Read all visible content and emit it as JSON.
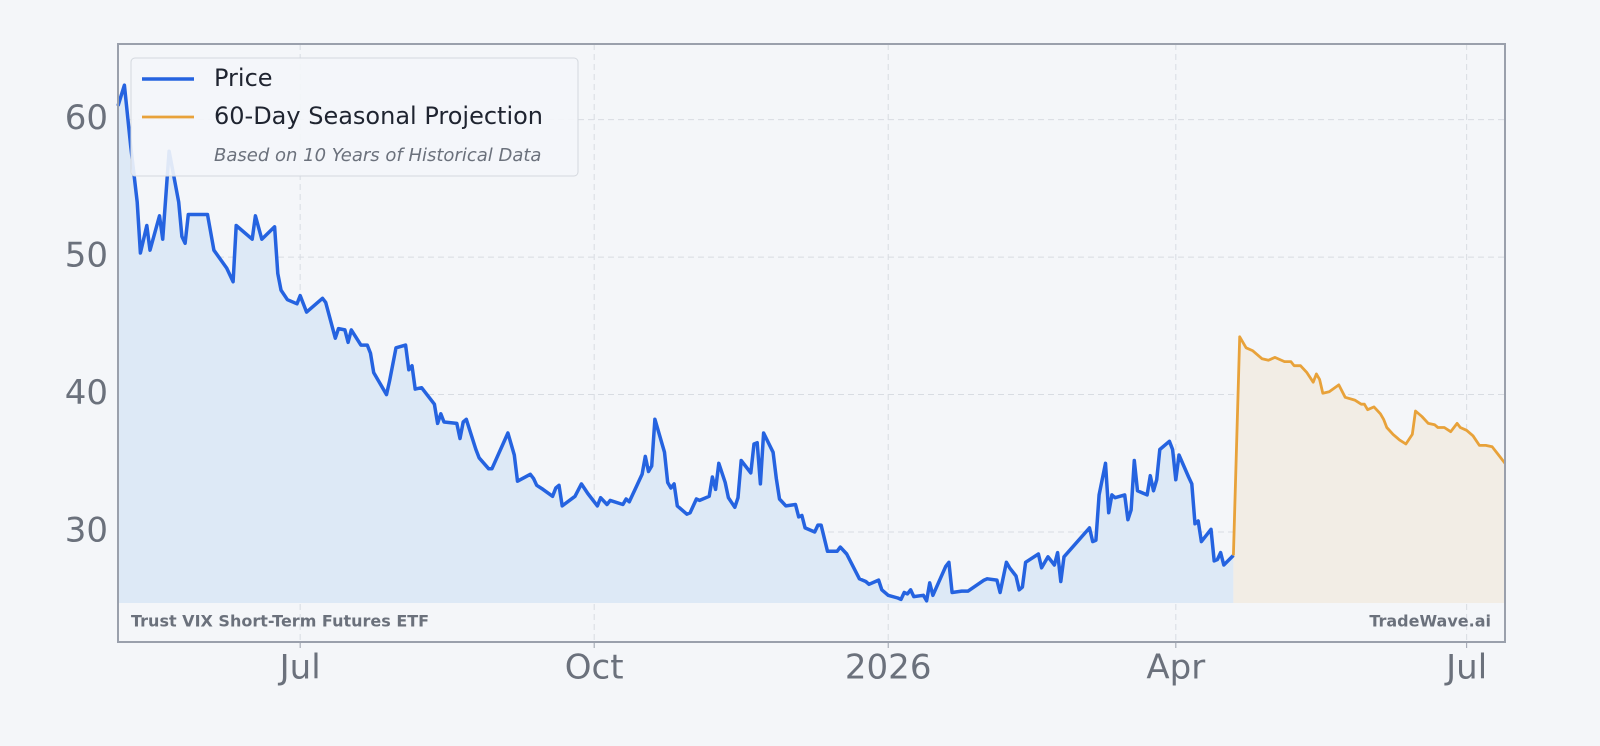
{
  "chart_data": {
    "type": "line",
    "legend_note": "Based on 10 Years of Historical Data",
    "footer_left": "Trust VIX Short-Term Futures ETF",
    "footer_right": "TradeWave.ai",
    "legend": "upper left",
    "grid": true,
    "xlim": [
      0,
      434
    ],
    "xticks": [
      {
        "value": 57,
        "label": "Jul"
      },
      {
        "value": 149,
        "label": "Oct"
      },
      {
        "value": 241,
        "label": "2026"
      },
      {
        "value": 331,
        "label": "Apr"
      },
      {
        "value": 422,
        "label": "Jul"
      }
    ],
    "ylim": [
      22,
      65.5
    ],
    "yticks": [
      30,
      40,
      50,
      60
    ],
    "series": [
      {
        "name": "Price",
        "color": "#2563e0",
        "fill": "#dde9f6",
        "x": [
          0,
          2,
          4,
          6,
          7,
          9,
          10,
          13,
          14,
          16,
          19,
          20,
          21,
          22,
          28,
          30,
          34,
          36,
          37,
          42,
          43,
          45,
          49,
          50,
          51,
          53,
          56,
          57,
          59,
          64,
          65,
          68,
          69,
          71,
          72,
          73,
          76,
          78,
          79,
          80,
          84,
          85,
          87,
          90,
          91,
          92,
          93,
          95,
          99,
          100,
          101,
          102,
          106,
          107,
          108,
          109,
          112,
          113,
          116,
          117,
          122,
          124,
          125,
          129,
          130,
          131,
          133,
          136,
          137,
          138,
          139,
          143,
          145,
          147,
          150,
          151,
          153,
          154,
          158,
          159,
          160,
          164,
          165,
          166,
          167,
          168,
          171,
          172,
          173,
          174,
          175,
          178,
          179,
          181,
          182,
          185,
          186,
          187,
          188,
          190,
          191,
          193,
          194,
          195,
          198,
          199,
          200,
          201,
          202,
          205,
          206,
          207,
          209,
          212,
          213,
          214,
          215,
          218,
          219,
          220,
          222,
          225,
          226,
          228,
          232,
          234,
          235,
          238,
          239,
          241,
          244,
          245,
          246,
          247,
          248,
          249,
          252,
          253,
          254,
          255,
          259,
          260,
          261,
          264,
          266,
          271,
          272,
          275,
          276,
          278,
          279,
          281,
          282,
          283,
          284,
          288,
          289,
          291,
          293,
          294,
          295,
          296,
          304,
          305,
          306,
          307,
          309,
          310,
          311,
          312,
          315,
          316,
          317,
          318,
          319,
          322,
          323,
          324,
          325,
          326,
          329,
          330,
          331,
          332,
          335,
          336,
          337,
          338,
          339,
          342,
          343,
          344,
          345,
          346,
          349
        ],
        "values": [
          61,
          62.5,
          58,
          54,
          50.3,
          52.3,
          50.5,
          53,
          51.3,
          57.7,
          54,
          51.5,
          51,
          53.1,
          53.1,
          50.5,
          49.2,
          48.2,
          52.3,
          51.3,
          53,
          51.3,
          52.2,
          48.8,
          47.6,
          46.9,
          46.6,
          47.2,
          46,
          47,
          46.7,
          44.1,
          44.8,
          44.7,
          43.8,
          44.7,
          43.6,
          43.6,
          43,
          41.6,
          40,
          41,
          43.4,
          43.6,
          41.8,
          42.1,
          40.4,
          40.5,
          39.3,
          37.9,
          38.6,
          38,
          37.9,
          36.8,
          38,
          38.2,
          36,
          35.4,
          34.6,
          34.6,
          37.2,
          35.6,
          33.7,
          34.2,
          33.9,
          33.4,
          33.1,
          32.6,
          33.2,
          33.4,
          31.9,
          32.6,
          33.5,
          32.8,
          31.9,
          32.5,
          32,
          32.3,
          32,
          32.4,
          32.2,
          34.2,
          35.5,
          34.4,
          34.8,
          38.2,
          35.8,
          33.6,
          33.2,
          33.5,
          31.9,
          31.3,
          31.4,
          32.4,
          32.3,
          32.6,
          34,
          33.1,
          35,
          33.6,
          32.5,
          31.8,
          32.5,
          35.2,
          34.3,
          36.4,
          36.5,
          33.5,
          37.2,
          35.8,
          33.9,
          32.4,
          31.9,
          32,
          31.1,
          31.2,
          30.3,
          30,
          30.5,
          30.5,
          28.6,
          28.6,
          28.9,
          28.4,
          26.6,
          26.4,
          26.2,
          26.5,
          25.8,
          25.4,
          25.2,
          25.1,
          25.6,
          25.5,
          25.8,
          25.3,
          25.4,
          25,
          26.3,
          25.4,
          27.5,
          27.8,
          25.6,
          25.7,
          25.7,
          26.5,
          26.6,
          26.5,
          25.6,
          27.8,
          27.4,
          26.8,
          25.8,
          26,
          27.8,
          28.4,
          27.4,
          28.2,
          27.6,
          28.5,
          26.4,
          28.2,
          30.3,
          29.3,
          29.4,
          32.7,
          35,
          31.4,
          32.7,
          32.5,
          32.7,
          30.9,
          31.6,
          35.2,
          33,
          32.7,
          34.1,
          33,
          33.8,
          36,
          36.6,
          36,
          33.8,
          35.6,
          34,
          33.5,
          30.6,
          30.8,
          29.3,
          30.2,
          27.9,
          28,
          28.5,
          27.6,
          28.3
        ]
      },
      {
        "name": "60-Day Seasonal Projection",
        "color": "#e8a23a",
        "fill": "#f2ede5",
        "x": [
          349,
          351,
          353,
          355,
          358,
          360,
          362,
          365,
          367,
          368,
          370,
          372,
          374,
          375,
          376,
          377,
          379,
          382,
          384,
          387,
          389,
          390,
          391,
          393,
          395,
          396,
          397,
          399,
          401,
          403,
          405,
          406,
          408,
          410,
          412,
          413,
          415,
          417,
          419,
          420,
          422,
          424,
          426,
          428,
          430,
          432,
          434
        ],
        "values": [
          28.3,
          44.2,
          43.4,
          43.2,
          42.6,
          42.5,
          42.7,
          42.4,
          42.4,
          42.1,
          42.1,
          41.6,
          40.9,
          41.5,
          41.1,
          40.1,
          40.2,
          40.7,
          39.8,
          39.6,
          39.3,
          39.3,
          38.9,
          39.1,
          38.6,
          38.2,
          37.6,
          37.1,
          36.7,
          36.4,
          37.1,
          38.8,
          38.4,
          37.9,
          37.8,
          37.6,
          37.6,
          37.3,
          37.9,
          37.6,
          37.4,
          37,
          36.3,
          36.3,
          36.2,
          35.6,
          35.0
        ]
      }
    ]
  }
}
